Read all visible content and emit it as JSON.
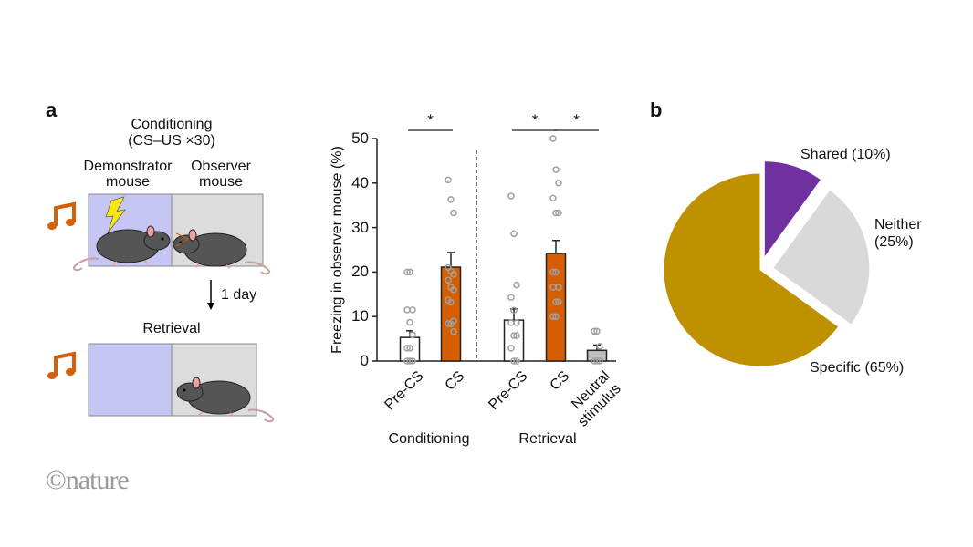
{
  "panel_a": {
    "label": "a",
    "conditioning_title": "Conditioning",
    "conditioning_subtitle": "(CS–US ×30)",
    "demonstrator_label_1": "Demonstrator",
    "demonstrator_label_2": "mouse",
    "observer_label_1": "Observer",
    "observer_label_2": "mouse",
    "delay_label": "1 day",
    "retrieval_title": "Retrieval",
    "icons": [
      "music-note-icon",
      "lightning-icon",
      "mouse-icon"
    ],
    "colors": {
      "demonstrator_box": "#c5c6f3",
      "observer_box": "#dcdcdc",
      "note": "#d4600a",
      "lightning": "#f5e614"
    }
  },
  "panel_b": {
    "label": "b"
  },
  "logo": "©nature",
  "chart_data": [
    {
      "type": "bar",
      "ylabel": "Freezing in observer mouse (%)",
      "ylim": [
        0,
        50
      ],
      "yticks": [
        0,
        10,
        20,
        30,
        40,
        50
      ],
      "groups": [
        "Conditioning",
        "Retrieval"
      ],
      "categories": [
        "Pre-CS",
        "CS",
        "Pre-CS",
        "CS",
        "Neutral stimulus"
      ],
      "category_lines": [
        [
          "Pre-CS"
        ],
        [
          "CS"
        ],
        [
          "Pre-CS"
        ],
        [
          "CS"
        ],
        [
          "Neutral",
          "stimulus"
        ]
      ],
      "category_group": [
        0,
        0,
        1,
        1,
        1
      ],
      "values": [
        5.3,
        21.1,
        9.2,
        24.2,
        2.4
      ],
      "error_upper": [
        6.8,
        24.4,
        11.7,
        27.1,
        3.6
      ],
      "bar_colors": [
        "#ffffff",
        "#d55e00",
        "#ffffff",
        "#d55e00",
        "#bdbdbd"
      ],
      "points": [
        [
          20,
          20,
          11.5,
          11.5,
          8.7,
          5.9,
          2.9,
          2.9,
          0,
          0,
          0
        ],
        [
          40.7,
          36.3,
          33.3,
          21,
          20.2,
          19.5,
          18.2,
          16.6,
          16,
          13.7,
          13.2,
          9,
          8.4,
          8.3,
          6.6
        ],
        [
          37.1,
          28.6,
          17.1,
          14.3,
          11.4,
          8.6,
          8.6,
          5.7,
          5.7,
          2.9,
          0,
          0
        ],
        [
          50,
          43,
          40,
          36.6,
          33.3,
          33.3,
          20,
          20,
          16.6,
          16.6,
          13.3,
          13.3,
          10,
          10
        ],
        [
          6.7,
          6.7,
          3.3,
          0,
          0,
          0
        ]
      ],
      "significance": [
        {
          "from": 0,
          "to": 1,
          "label": "*"
        },
        {
          "from": 2,
          "to": 3,
          "label": "*"
        },
        {
          "from": 3,
          "to": 4,
          "label": "*"
        }
      ],
      "grid": false
    },
    {
      "type": "pie",
      "slices": [
        {
          "label": "Shared (10%)",
          "value": 10,
          "color": "#7030a0",
          "exploded": true
        },
        {
          "label": "Neither (25%)",
          "label_lines": [
            "Neither",
            "(25%)"
          ],
          "value": 25,
          "color": "#d9d9d9",
          "exploded": true
        },
        {
          "label": "Specific (65%)",
          "value": 65,
          "color": "#bf9000",
          "exploded": false
        }
      ]
    }
  ]
}
